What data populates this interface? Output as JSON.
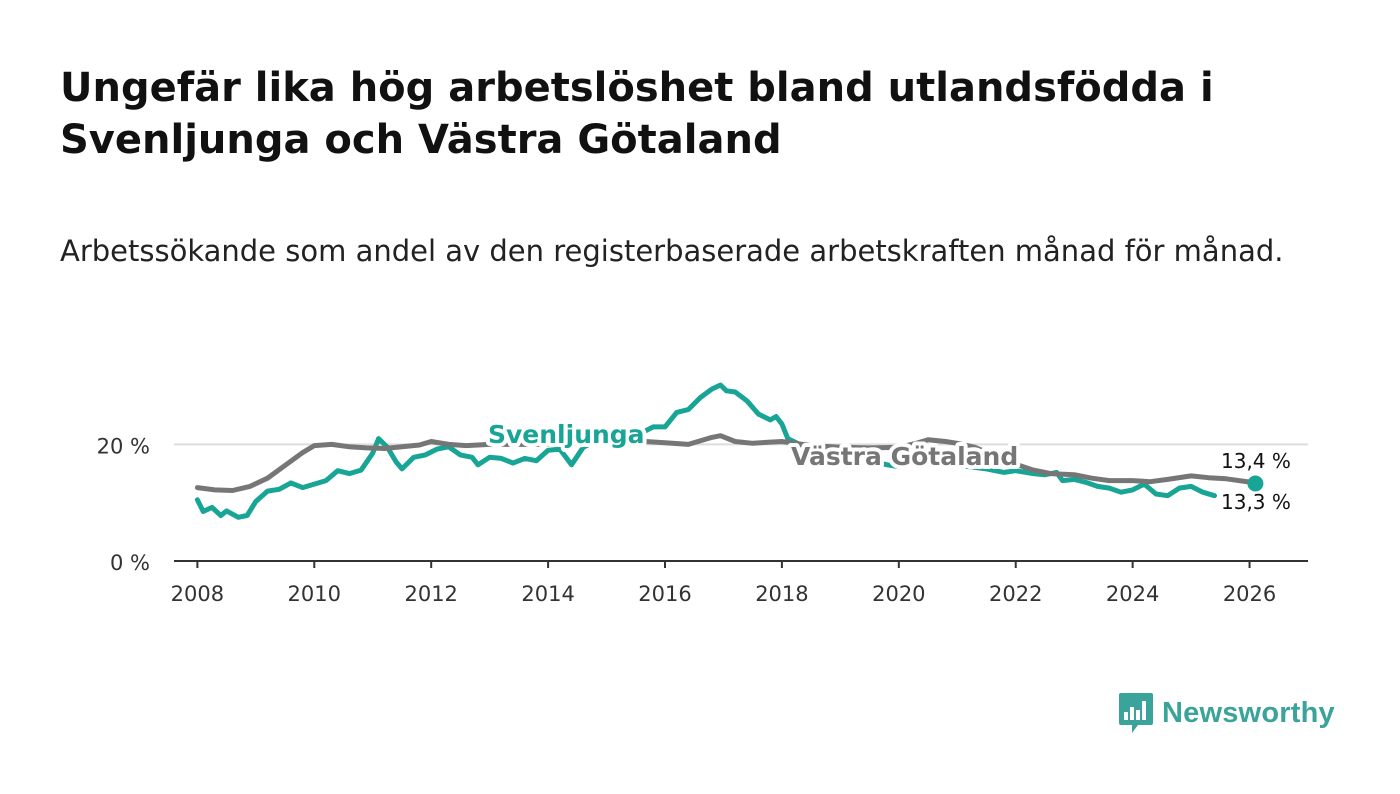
{
  "title": "Ungefär lika hög arbetslöshet bland utlandsfödda i Svenljunga och Västra Götaland",
  "subtitle": "Arbetssökande som andel av den registerbaserade arbetskraften månad för månad.",
  "brand": {
    "name": "Newsworthy",
    "color": "#3aa39a",
    "logo_icon": "bar-chart-speech-bubble-icon"
  },
  "colors": {
    "svenljunga": "#18a596",
    "vastra": "#767676",
    "grid": "#dddddd",
    "axis": "#333333"
  },
  "chart_data": {
    "type": "line",
    "title": "Ungefär lika hög arbetslöshet bland utlandsfödda i Svenljunga och Västra Götaland",
    "xlabel": "",
    "ylabel": "",
    "xlim": [
      2007.6,
      2027.0
    ],
    "ylim": [
      0,
      35
    ],
    "x_ticks": [
      2008,
      2010,
      2012,
      2014,
      2016,
      2018,
      2020,
      2022,
      2024,
      2026
    ],
    "x_tick_labels": [
      "2008",
      "2010",
      "2012",
      "2014",
      "2016",
      "2018",
      "2020",
      "2022",
      "2024",
      "2026"
    ],
    "y_ticks": [
      0,
      20
    ],
    "y_tick_labels": [
      "0 %",
      "20 %"
    ],
    "grid": true,
    "series": [
      {
        "name": "Svenljunga",
        "color": "#18a596",
        "end_label": "13,3 %",
        "points": [
          [
            2008.0,
            10.5
          ],
          [
            2008.1,
            8.5
          ],
          [
            2008.25,
            9.2
          ],
          [
            2008.4,
            7.8
          ],
          [
            2008.5,
            8.6
          ],
          [
            2008.7,
            7.5
          ],
          [
            2008.85,
            7.8
          ],
          [
            2009.0,
            10.2
          ],
          [
            2009.2,
            12.0
          ],
          [
            2009.4,
            12.3
          ],
          [
            2009.6,
            13.4
          ],
          [
            2009.8,
            12.6
          ],
          [
            2010.0,
            13.2
          ],
          [
            2010.2,
            13.8
          ],
          [
            2010.4,
            15.5
          ],
          [
            2010.6,
            15.0
          ],
          [
            2010.8,
            15.6
          ],
          [
            2011.0,
            18.5
          ],
          [
            2011.1,
            21.0
          ],
          [
            2011.25,
            19.5
          ],
          [
            2011.4,
            17.0
          ],
          [
            2011.5,
            15.8
          ],
          [
            2011.7,
            17.8
          ],
          [
            2011.9,
            18.2
          ],
          [
            2012.1,
            19.2
          ],
          [
            2012.3,
            19.6
          ],
          [
            2012.5,
            18.2
          ],
          [
            2012.7,
            17.8
          ],
          [
            2012.8,
            16.5
          ],
          [
            2013.0,
            17.8
          ],
          [
            2013.2,
            17.6
          ],
          [
            2013.4,
            16.8
          ],
          [
            2013.6,
            17.6
          ],
          [
            2013.8,
            17.2
          ],
          [
            2014.0,
            19.0
          ],
          [
            2014.2,
            19.2
          ],
          [
            2014.4,
            16.5
          ],
          [
            2014.6,
            19.5
          ],
          [
            2014.8,
            20.5
          ],
          [
            2015.0,
            21.5
          ],
          [
            2015.2,
            21.0
          ],
          [
            2015.4,
            20.8
          ],
          [
            2015.6,
            22.0
          ],
          [
            2015.8,
            23.0
          ],
          [
            2016.0,
            23.0
          ],
          [
            2016.2,
            25.5
          ],
          [
            2016.4,
            26.0
          ],
          [
            2016.6,
            28.0
          ],
          [
            2016.8,
            29.5
          ],
          [
            2016.95,
            30.2
          ],
          [
            2017.05,
            29.2
          ],
          [
            2017.2,
            29.0
          ],
          [
            2017.4,
            27.5
          ],
          [
            2017.6,
            25.2
          ],
          [
            2017.8,
            24.2
          ],
          [
            2017.9,
            24.8
          ],
          [
            2018.0,
            23.5
          ],
          [
            2018.1,
            21.0
          ],
          [
            2018.3,
            20.0
          ],
          [
            2018.6,
            19.0
          ],
          [
            2018.9,
            18.5
          ],
          [
            2019.2,
            17.5
          ],
          [
            2019.5,
            17.2
          ],
          [
            2019.8,
            16.5
          ],
          [
            2020.0,
            16.2
          ],
          [
            2020.3,
            16.8
          ],
          [
            2020.6,
            17.0
          ],
          [
            2020.9,
            16.5
          ],
          [
            2021.2,
            16.2
          ],
          [
            2021.5,
            15.8
          ],
          [
            2021.8,
            15.2
          ],
          [
            2022.0,
            15.5
          ],
          [
            2022.3,
            15.0
          ],
          [
            2022.5,
            14.8
          ],
          [
            2022.7,
            15.2
          ],
          [
            2022.8,
            13.8
          ],
          [
            2023.0,
            14.0
          ],
          [
            2023.2,
            13.5
          ],
          [
            2023.4,
            12.8
          ],
          [
            2023.6,
            12.5
          ],
          [
            2023.8,
            11.8
          ],
          [
            2024.0,
            12.2
          ],
          [
            2024.2,
            13.2
          ],
          [
            2024.4,
            11.5
          ],
          [
            2024.6,
            11.2
          ],
          [
            2024.8,
            12.5
          ],
          [
            2025.0,
            12.8
          ],
          [
            2025.2,
            11.8
          ],
          [
            2025.4,
            11.2
          ]
        ],
        "end_point": [
          2026.1,
          13.3
        ]
      },
      {
        "name": "Västra Götaland",
        "color": "#767676",
        "end_label": "13,4 %",
        "points": [
          [
            2008.0,
            12.6
          ],
          [
            2008.3,
            12.2
          ],
          [
            2008.6,
            12.1
          ],
          [
            2008.9,
            12.8
          ],
          [
            2009.2,
            14.2
          ],
          [
            2009.5,
            16.4
          ],
          [
            2009.8,
            18.6
          ],
          [
            2010.0,
            19.8
          ],
          [
            2010.3,
            20.0
          ],
          [
            2010.6,
            19.6
          ],
          [
            2010.9,
            19.4
          ],
          [
            2011.2,
            19.3
          ],
          [
            2011.5,
            19.6
          ],
          [
            2011.8,
            19.9
          ],
          [
            2012.0,
            20.5
          ],
          [
            2012.3,
            20.0
          ],
          [
            2012.6,
            19.8
          ],
          [
            2013.0,
            20.0
          ],
          [
            2013.5,
            20.0
          ],
          [
            2014.0,
            20.0
          ],
          [
            2014.5,
            20.2
          ],
          [
            2015.0,
            20.3
          ],
          [
            2015.5,
            20.6
          ],
          [
            2016.0,
            20.3
          ],
          [
            2016.4,
            20.0
          ],
          [
            2016.8,
            21.2
          ],
          [
            2016.95,
            21.5
          ],
          [
            2017.2,
            20.5
          ],
          [
            2017.5,
            20.2
          ],
          [
            2017.8,
            20.4
          ],
          [
            2018.0,
            20.5
          ],
          [
            2018.5,
            19.8
          ],
          [
            2019.0,
            19.5
          ],
          [
            2019.5,
            19.4
          ],
          [
            2020.0,
            19.5
          ],
          [
            2020.3,
            20.2
          ],
          [
            2020.5,
            20.8
          ],
          [
            2020.8,
            20.5
          ],
          [
            2021.0,
            20.2
          ],
          [
            2021.3,
            19.5
          ],
          [
            2021.6,
            18.2
          ],
          [
            2022.0,
            16.6
          ],
          [
            2022.3,
            15.6
          ],
          [
            2022.6,
            15.0
          ],
          [
            2023.0,
            14.8
          ],
          [
            2023.3,
            14.2
          ],
          [
            2023.6,
            13.8
          ],
          [
            2024.0,
            13.8
          ],
          [
            2024.3,
            13.6
          ],
          [
            2024.6,
            14.0
          ],
          [
            2025.0,
            14.6
          ],
          [
            2025.3,
            14.3
          ],
          [
            2025.6,
            14.1
          ],
          [
            2026.1,
            13.4
          ]
        ],
        "end_point": [
          2026.1,
          13.4
        ]
      }
    ]
  }
}
